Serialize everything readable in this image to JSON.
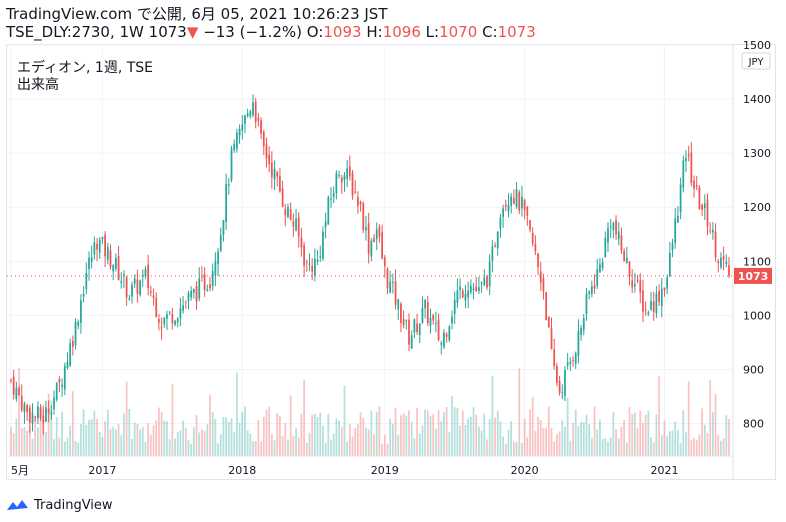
{
  "header": {
    "line1": "TradingView.com で公開, 6月 05, 2021 10:26:23 JST",
    "symbol": "TSE_DLY:2730, 1W",
    "last": "1073",
    "change_arrow": "▼",
    "change": "−13 (−1.2%)",
    "o_label": "O:",
    "o_value": "1093",
    "h_label": "H:",
    "h_value": "1096",
    "l_label": "L:",
    "l_value": "1070",
    "c_label": "C:",
    "c_value": "1073"
  },
  "legend": {
    "name": "エディオン, 1週, TSE",
    "volume": "出来高"
  },
  "footer": {
    "brand": "TradingView"
  },
  "colors": {
    "up": "#26a69a",
    "down": "#ef5350",
    "price_line": "#ef5350",
    "grid": "#f0f3fa"
  },
  "chart_data": {
    "type": "candlestick",
    "currency_label": "JPY",
    "current_price": 1073,
    "current_price_label": "1073",
    "y_range": [
      740,
      1500
    ],
    "y_ticks": [
      {
        "value": 800,
        "label": "800"
      },
      {
        "value": 900,
        "label": "900"
      },
      {
        "value": 1000,
        "label": "1000"
      },
      {
        "value": 1100,
        "label": "1100"
      },
      {
        "value": 1200,
        "label": "1200"
      },
      {
        "value": 1300,
        "label": "1300"
      },
      {
        "value": 1400,
        "label": "1400"
      },
      {
        "value": 1500,
        "label": "1500"
      }
    ],
    "x_ticks": [
      {
        "label": "5月",
        "week": 0
      },
      {
        "label": "2017",
        "week": 34
      },
      {
        "label": "2018",
        "week": 86
      },
      {
        "label": "2019",
        "week": 139
      },
      {
        "label": "2020",
        "week": 191
      },
      {
        "label": "2021",
        "week": 243
      }
    ],
    "week_count": 268,
    "price_path": [
      [
        0,
        880
      ],
      [
        6,
        820
      ],
      [
        12,
        810
      ],
      [
        18,
        870
      ],
      [
        24,
        980
      ],
      [
        28,
        1080
      ],
      [
        32,
        1140
      ],
      [
        38,
        1100
      ],
      [
        44,
        1040
      ],
      [
        50,
        1070
      ],
      [
        56,
        990
      ],
      [
        62,
        1010
      ],
      [
        68,
        1040
      ],
      [
        74,
        1070
      ],
      [
        78,
        1160
      ],
      [
        82,
        1290
      ],
      [
        86,
        1350
      ],
      [
        90,
        1400
      ],
      [
        93,
        1320
      ],
      [
        98,
        1260
      ],
      [
        102,
        1200
      ],
      [
        106,
        1160
      ],
      [
        110,
        1090
      ],
      [
        114,
        1100
      ],
      [
        118,
        1200
      ],
      [
        122,
        1270
      ],
      [
        126,
        1250
      ],
      [
        130,
        1200
      ],
      [
        133,
        1130
      ],
      [
        136,
        1160
      ],
      [
        139,
        1080
      ],
      [
        143,
        1030
      ],
      [
        148,
        960
      ],
      [
        154,
        1010
      ],
      [
        160,
        950
      ],
      [
        166,
        1040
      ],
      [
        170,
        1060
      ],
      [
        174,
        1040
      ],
      [
        178,
        1080
      ],
      [
        182,
        1200
      ],
      [
        186,
        1230
      ],
      [
        190,
        1200
      ],
      [
        194,
        1130
      ],
      [
        198,
        1050
      ],
      [
        201,
        920
      ],
      [
        204,
        860
      ],
      [
        207,
        900
      ],
      [
        211,
        960
      ],
      [
        215,
        1040
      ],
      [
        219,
        1090
      ],
      [
        223,
        1180
      ],
      [
        227,
        1120
      ],
      [
        231,
        1070
      ],
      [
        236,
        1010
      ],
      [
        240,
        1030
      ],
      [
        244,
        1070
      ],
      [
        248,
        1200
      ],
      [
        251,
        1300
      ],
      [
        255,
        1220
      ],
      [
        259,
        1180
      ],
      [
        263,
        1110
      ],
      [
        267,
        1073
      ]
    ]
  }
}
